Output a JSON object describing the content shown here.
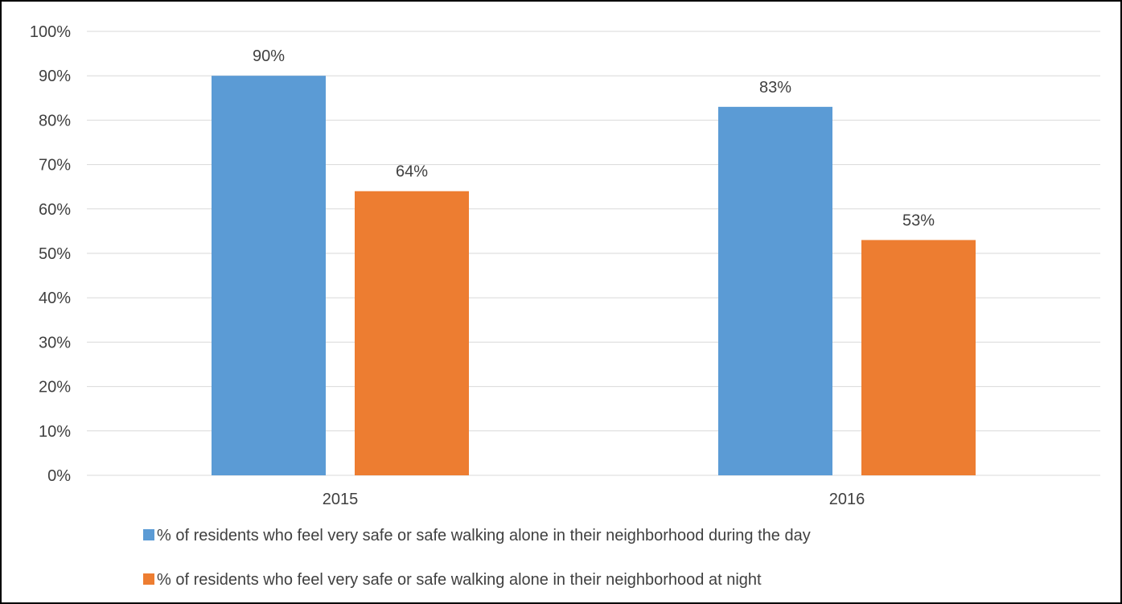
{
  "chart_data": {
    "type": "bar",
    "title": "",
    "xlabel": "",
    "ylabel": "",
    "categories": [
      "2015",
      "2016"
    ],
    "ylim": [
      0,
      100
    ],
    "y_ticks": [
      "0%",
      "10%",
      "20%",
      "30%",
      "40%",
      "50%",
      "60%",
      "70%",
      "80%",
      "90%",
      "100%"
    ],
    "grid": true,
    "legend_position": "bottom",
    "series": [
      {
        "name": "% of residents who feel very safe or  safe walking alone in their neighborhood during the day",
        "values": [
          90,
          83
        ],
        "labels": [
          "90%",
          "83%"
        ],
        "color": "#5B9BD5"
      },
      {
        "name": "% of residents who feel very safe or  safe walking alone in their neighborhood at night",
        "values": [
          64,
          53
        ],
        "labels": [
          "64%",
          "53%"
        ],
        "color": "#ED7D31"
      }
    ],
    "colors": {
      "grid": "#D9D9D9",
      "text": "#404040",
      "frame": "#000000"
    }
  }
}
